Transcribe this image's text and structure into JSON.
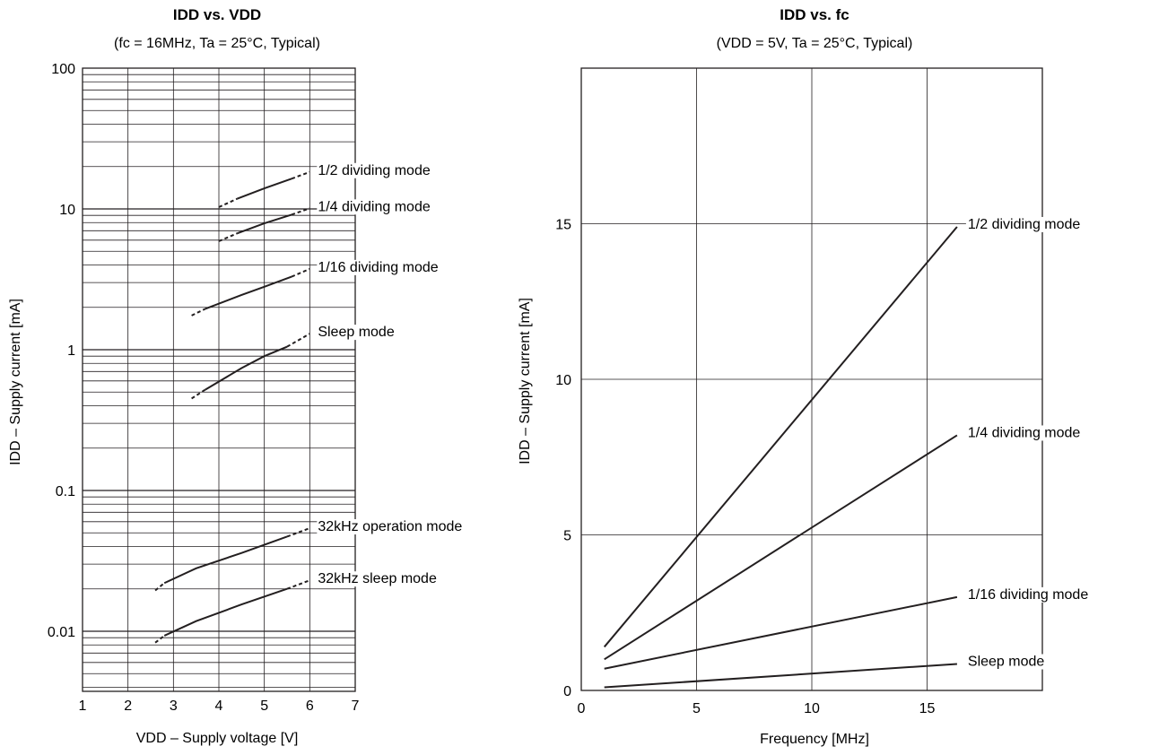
{
  "colors": {
    "ink": "#231f20",
    "grid": "#231f20",
    "background": "#ffffff"
  },
  "chart_data": [
    {
      "type": "line",
      "title": "IDD vs. VDD",
      "subtitle": "(fc = 16MHz, Ta = 25°C, Typical)",
      "xlabel": "VDD – Supply voltage [V]",
      "ylabel": "IDD – Supply current [mA]",
      "xlim": [
        1,
        7
      ],
      "ylim": [
        0.004,
        100
      ],
      "yscale": "log",
      "grid": true,
      "x_ticks": [
        "1",
        "2",
        "3",
        "4",
        "5",
        "6",
        "7"
      ],
      "y_ticks": [
        {
          "value": 100,
          "label": "100"
        },
        {
          "value": 10,
          "label": "10"
        },
        {
          "value": 1,
          "label": "1"
        },
        {
          "value": 0.1,
          "label": "0.1"
        },
        {
          "value": 0.01,
          "label": "0.01"
        }
      ],
      "series": [
        {
          "name": "1/2 dividing mode",
          "dashed_ends": true,
          "points": [
            [
              4.0,
              10.3
            ],
            [
              4.4,
              11.8
            ],
            [
              5.0,
              14.0
            ],
            [
              5.6,
              16.4
            ],
            [
              6.0,
              18.3
            ]
          ]
        },
        {
          "name": "1/4 dividing mode",
          "dashed_ends": true,
          "points": [
            [
              4.0,
              5.9
            ],
            [
              4.4,
              6.7
            ],
            [
              5.0,
              7.9
            ],
            [
              5.6,
              9.1
            ],
            [
              6.0,
              10.1
            ]
          ]
        },
        {
          "name": "1/16 dividing mode",
          "dashed_ends": true,
          "points": [
            [
              3.4,
              1.75
            ],
            [
              3.7,
              1.95
            ],
            [
              4.5,
              2.45
            ],
            [
              5.0,
              2.8
            ],
            [
              5.6,
              3.3
            ],
            [
              6.0,
              3.75
            ]
          ]
        },
        {
          "name": "Sleep mode",
          "dashed_ends": true,
          "points": [
            [
              3.4,
              0.45
            ],
            [
              3.7,
              0.52
            ],
            [
              4.5,
              0.74
            ],
            [
              5.0,
              0.9
            ],
            [
              5.5,
              1.05
            ],
            [
              6.0,
              1.3
            ]
          ]
        },
        {
          "name": "32kHz operation mode",
          "dashed_ends": true,
          "points": [
            [
              2.6,
              0.0195
            ],
            [
              2.8,
              0.022
            ],
            [
              3.5,
              0.028
            ],
            [
              4.5,
              0.036
            ],
            [
              5.5,
              0.047
            ],
            [
              6.0,
              0.054
            ]
          ]
        },
        {
          "name": "32kHz sleep mode",
          "dashed_ends": true,
          "points": [
            [
              2.6,
              0.0083
            ],
            [
              2.8,
              0.0093
            ],
            [
              3.5,
              0.0118
            ],
            [
              4.5,
              0.0155
            ],
            [
              5.5,
              0.02
            ],
            [
              6.0,
              0.023
            ]
          ]
        }
      ]
    },
    {
      "type": "line",
      "title": "IDD vs.  fc",
      "subtitle": "(VDD = 5V,  Ta = 25°C, Typical)",
      "xlabel": "Frequency [MHz]",
      "ylabel": "IDD – Supply current [mA]",
      "xlim": [
        0,
        20
      ],
      "ylim": [
        0,
        20
      ],
      "grid": true,
      "x_ticks": [
        {
          "value": 0,
          "label": "0"
        },
        {
          "value": 5,
          "label": "5"
        },
        {
          "value": 10,
          "label": "10"
        },
        {
          "value": 15,
          "label": "15"
        }
      ],
      "y_ticks": [
        {
          "value": 0,
          "label": "0"
        },
        {
          "value": 5,
          "label": "5"
        },
        {
          "value": 10,
          "label": "10"
        },
        {
          "value": 15,
          "label": "15"
        }
      ],
      "series": [
        {
          "name": "1/2 dividing mode",
          "points": [
            [
              1.0,
              1.4
            ],
            [
              16.3,
              14.9
            ]
          ]
        },
        {
          "name": "1/4 dividing mode",
          "points": [
            [
              1.0,
              1.0
            ],
            [
              16.3,
              8.2
            ]
          ]
        },
        {
          "name": "1/16 dividing mode",
          "points": [
            [
              1.0,
              0.7
            ],
            [
              16.3,
              3.0
            ]
          ]
        },
        {
          "name": "Sleep mode",
          "points": [
            [
              1.0,
              0.1
            ],
            [
              16.3,
              0.85
            ]
          ]
        }
      ]
    }
  ]
}
